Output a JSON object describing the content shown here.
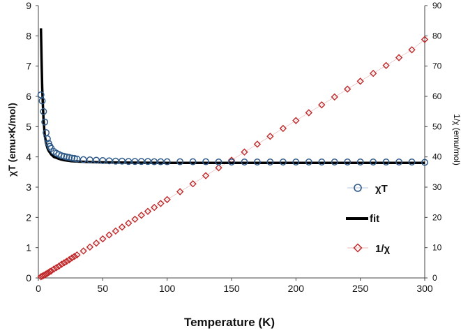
{
  "chart_data": {
    "type": "scatter",
    "xlabel": "Temperature (K)",
    "ylabel": "χT (emu×K/mol)",
    "y2label": "1/χ (emu/mol)",
    "xlim": [
      0,
      300
    ],
    "ylim": [
      0,
      9
    ],
    "y2lim": [
      0,
      90
    ],
    "xticks": [
      0,
      50,
      100,
      150,
      200,
      250,
      300
    ],
    "yticks": [
      0,
      1,
      2,
      3,
      4,
      5,
      6,
      7,
      8,
      9
    ],
    "y2ticks": [
      0,
      10,
      20,
      30,
      40,
      50,
      60,
      70,
      80,
      90
    ],
    "grid": false,
    "legend_position": "right",
    "legend": [
      "χT",
      "fit",
      "1/χ"
    ],
    "colors": {
      "chiT": "#2e5a8a",
      "fit": "#000000",
      "invchi": "#c0282a",
      "axis": "#444444"
    },
    "series": [
      {
        "name": "χT",
        "axis": "left",
        "marker": "circle",
        "x": [
          2,
          3,
          4,
          5,
          6,
          7,
          8,
          9,
          10,
          12,
          14,
          16,
          18,
          20,
          22,
          24,
          26,
          28,
          30,
          35,
          40,
          45,
          50,
          55,
          60,
          65,
          70,
          75,
          80,
          85,
          90,
          95,
          100,
          110,
          120,
          130,
          140,
          150,
          160,
          170,
          180,
          190,
          200,
          210,
          220,
          230,
          240,
          250,
          260,
          270,
          280,
          290,
          300
        ],
        "values": [
          6.05,
          5.85,
          5.5,
          5.15,
          4.8,
          4.6,
          4.45,
          4.35,
          4.28,
          4.18,
          4.12,
          4.08,
          4.04,
          4.02,
          4.0,
          3.98,
          3.96,
          3.95,
          3.93,
          3.91,
          3.9,
          3.89,
          3.88,
          3.87,
          3.86,
          3.86,
          3.85,
          3.85,
          3.85,
          3.85,
          3.84,
          3.84,
          3.84,
          3.84,
          3.84,
          3.84,
          3.83,
          3.83,
          3.83,
          3.83,
          3.83,
          3.83,
          3.83,
          3.83,
          3.83,
          3.83,
          3.83,
          3.83,
          3.83,
          3.83,
          3.83,
          3.83,
          3.82
        ]
      },
      {
        "name": "fit",
        "axis": "left",
        "marker": "line",
        "x": [
          2,
          2.5,
          3,
          3.5,
          4,
          5,
          6,
          7,
          8,
          10,
          12,
          15,
          18,
          20,
          25,
          30,
          40,
          50,
          70,
          100,
          150,
          200,
          250,
          300
        ],
        "values": [
          8.25,
          7.2,
          6.3,
          5.7,
          5.25,
          4.7,
          4.45,
          4.3,
          4.2,
          4.08,
          4.0,
          3.95,
          3.91,
          3.89,
          3.86,
          3.85,
          3.83,
          3.82,
          3.81,
          3.8,
          3.8,
          3.8,
          3.8,
          3.8
        ]
      },
      {
        "name": "1/χ",
        "axis": "right",
        "marker": "diamond",
        "x": [
          2,
          3,
          4,
          5,
          6,
          7,
          8,
          9,
          10,
          12,
          14,
          16,
          18,
          20,
          22,
          24,
          26,
          28,
          30,
          35,
          40,
          45,
          50,
          55,
          60,
          65,
          70,
          75,
          80,
          85,
          90,
          95,
          100,
          110,
          120,
          130,
          140,
          150,
          160,
          170,
          180,
          190,
          200,
          210,
          220,
          230,
          240,
          250,
          260,
          270,
          280,
          290,
          300
        ],
        "values": [
          0.4,
          0.6,
          0.8,
          1.0,
          1.3,
          1.5,
          1.8,
          2.1,
          2.3,
          2.9,
          3.4,
          3.9,
          4.5,
          5.0,
          5.5,
          6.0,
          6.6,
          7.1,
          7.6,
          8.9,
          10.2,
          11.5,
          12.9,
          14.2,
          15.5,
          16.8,
          18.1,
          19.4,
          20.7,
          22.0,
          23.3,
          24.6,
          25.9,
          28.5,
          31.1,
          33.8,
          36.4,
          38.9,
          41.6,
          44.2,
          46.8,
          49.4,
          52.0,
          54.6,
          57.2,
          59.8,
          62.4,
          65.0,
          67.6,
          70.2,
          72.8,
          75.4,
          78.8
        ]
      }
    ]
  }
}
